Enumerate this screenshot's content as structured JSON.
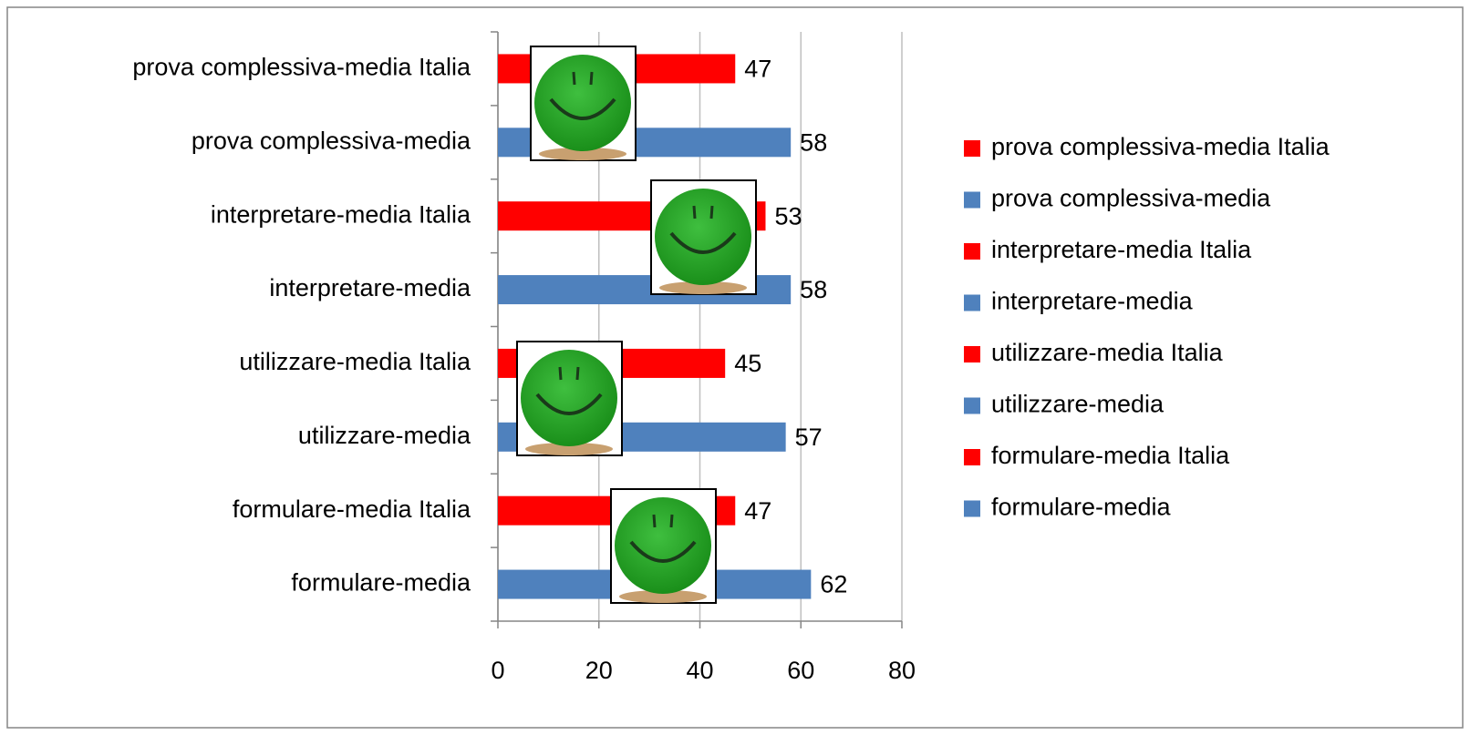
{
  "chart_data": {
    "type": "bar",
    "orientation": "horizontal",
    "categories": [
      "prova complessiva-media  Italia",
      "prova complessiva-media",
      "interpretare-media  Italia",
      "interpretare-media",
      "utilizzare-media Italia",
      "utilizzare-media",
      "formulare-media  Italia",
      "formulare-media"
    ],
    "values": [
      47,
      58,
      53,
      58,
      45,
      57,
      47,
      62
    ],
    "colors": [
      "#ff0000",
      "#4f81bd",
      "#ff0000",
      "#4f81bd",
      "#ff0000",
      "#4f81bd",
      "#ff0000",
      "#4f81bd"
    ],
    "xlim": [
      0,
      80
    ],
    "xticks": [
      0,
      20,
      40,
      60,
      80
    ],
    "grid": true,
    "legend": "right"
  }
}
